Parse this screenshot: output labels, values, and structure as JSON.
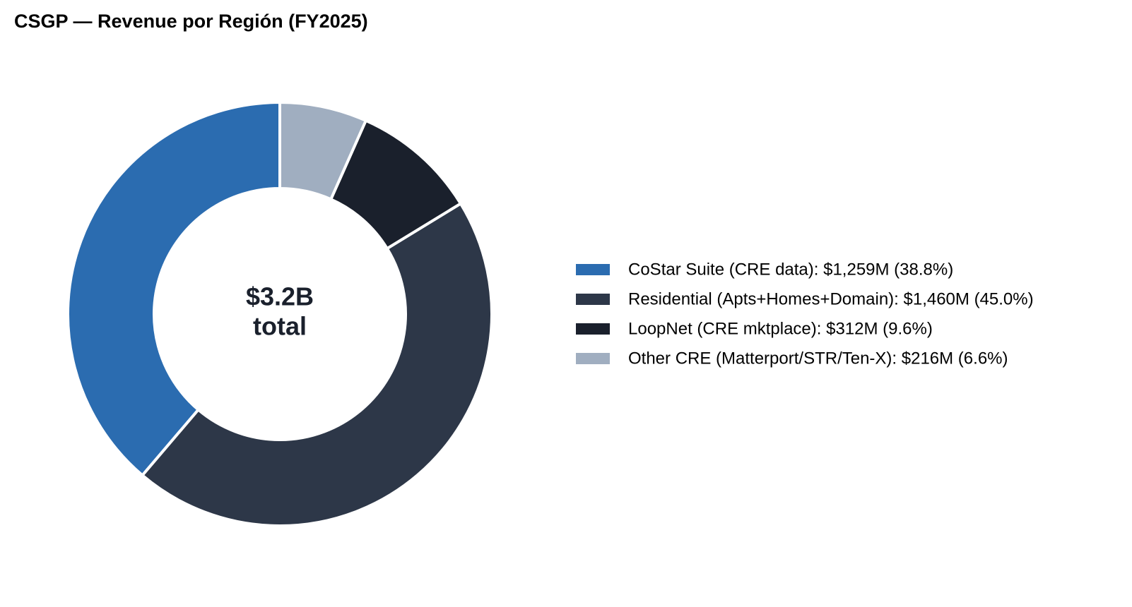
{
  "chart_data": {
    "type": "donut",
    "title": "CSGP — Revenue por Región (FY2025)",
    "center_label": [
      "$3.2B",
      "total"
    ],
    "categories": [
      "CoStar Suite (CRE data): $1,259M (38.8%)",
      "Residential (Apts+Homes+Domain): $1,460M (45.0%)",
      "LoopNet (CRE mktplace): $312M (9.6%)",
      "Other CRE (Matterport/STR/Ten-X): $216M (6.6%)"
    ],
    "values": [
      1259,
      1460,
      312,
      216
    ],
    "colors": [
      "#2b6cb0",
      "#2d3748",
      "#1a202c",
      "#a0aec0"
    ],
    "legend": "right"
  }
}
